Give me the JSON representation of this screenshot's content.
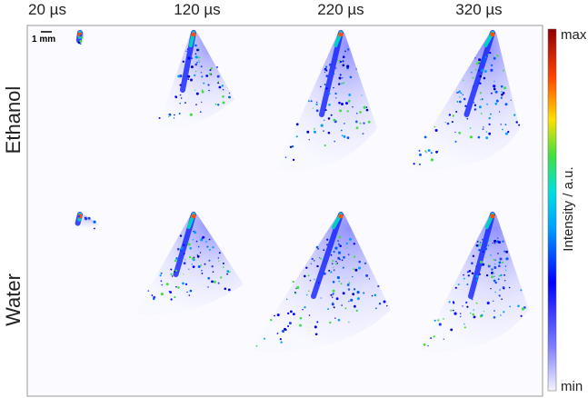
{
  "columns": [
    "20 µs",
    "120 µs",
    "220 µs",
    "320 µs"
  ],
  "rows": [
    "Ethanol",
    "Water"
  ],
  "scale_bar": "1 mm",
  "colorbar": {
    "label": "Intensity / a.u.",
    "max": "max",
    "min": "min"
  }
}
